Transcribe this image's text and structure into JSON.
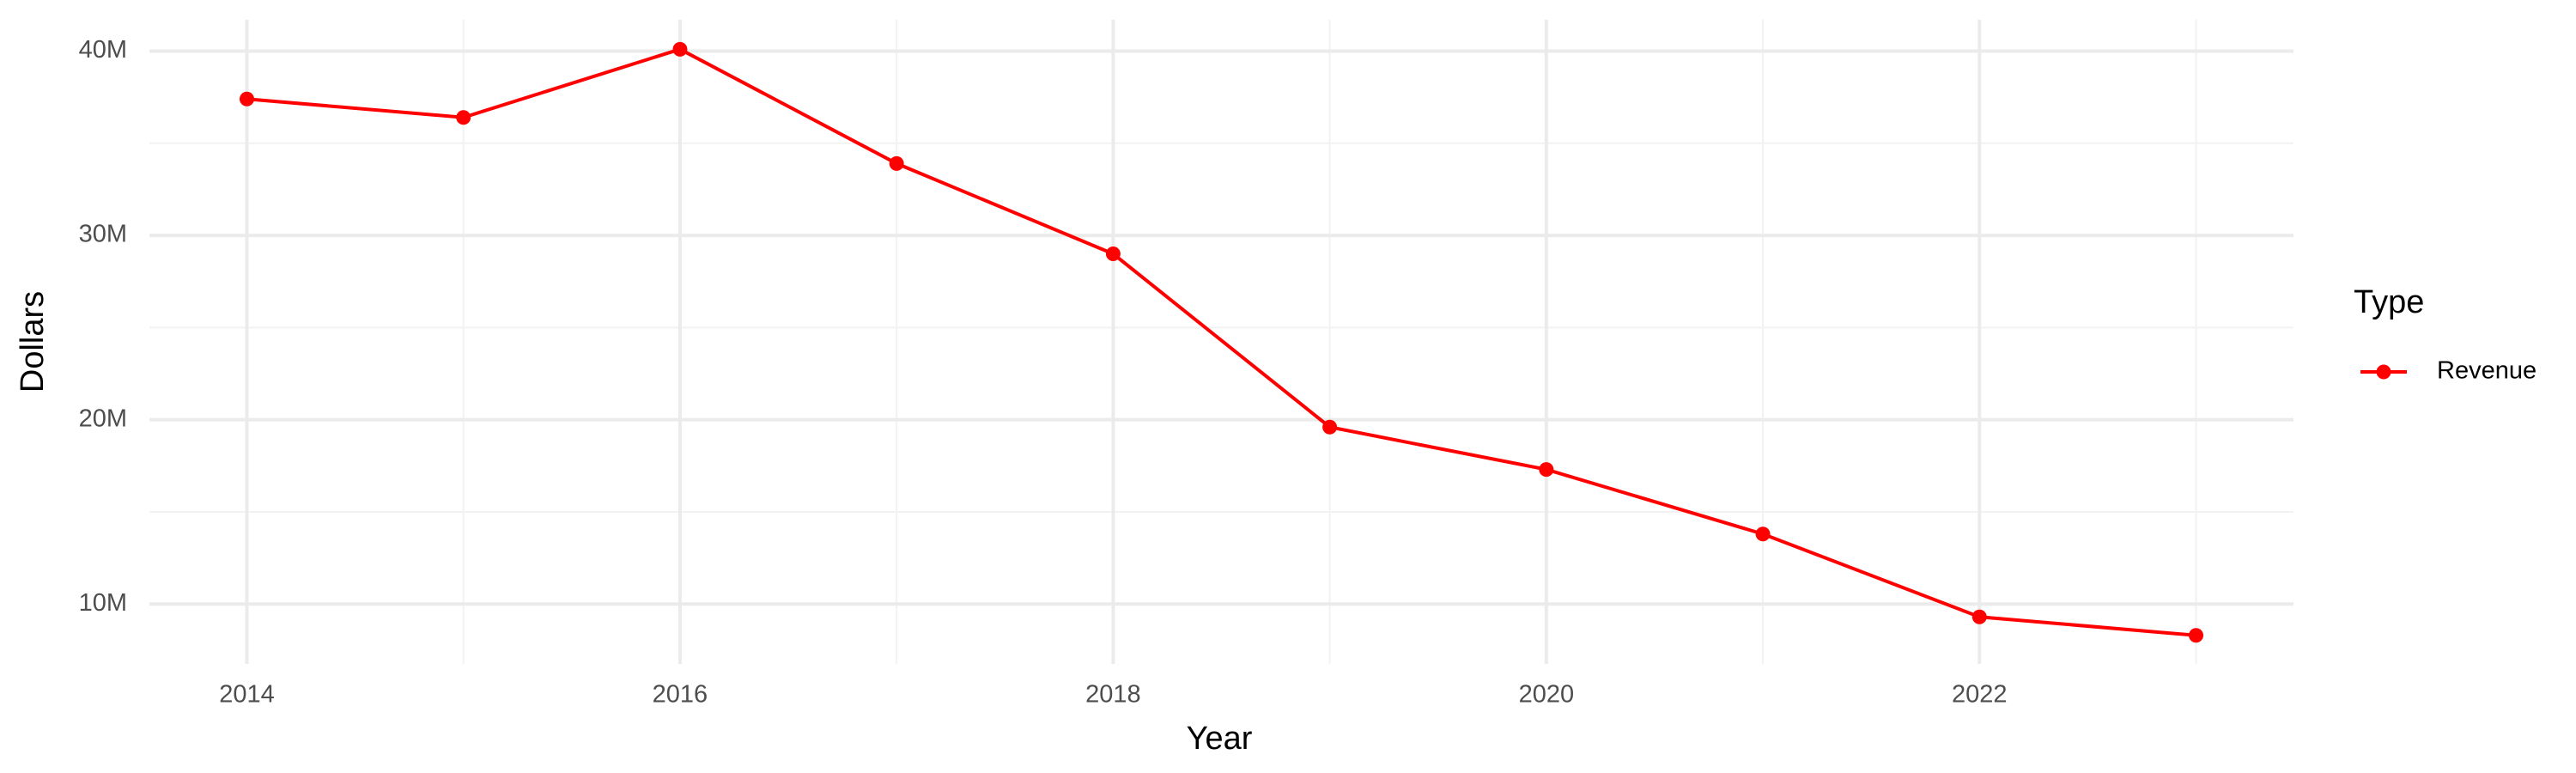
{
  "chart_data": {
    "type": "line",
    "x_label": "Year",
    "y_label": "Dollars",
    "x": [
      2014,
      2015,
      2016,
      2017,
      2018,
      2019,
      2020,
      2021,
      2022,
      2023
    ],
    "series": [
      {
        "name": "Revenue",
        "color": "#ff0000",
        "values": [
          37400000,
          36400000,
          40100000,
          33900000,
          29000000,
          19600000,
          17300000,
          13800000,
          9300000,
          8300000
        ]
      }
    ],
    "xlim": [
      2013.55,
      2023.45
    ],
    "ylim": [
      6750000,
      41700000
    ],
    "xticks": [
      2014,
      2016,
      2018,
      2020,
      2022
    ],
    "x_minor_ticks": [
      2015,
      2017,
      2019,
      2021,
      2023
    ],
    "yticks": [
      {
        "value": 10000000,
        "label": "10M"
      },
      {
        "value": 20000000,
        "label": "20M"
      },
      {
        "value": 30000000,
        "label": "30M"
      },
      {
        "value": 40000000,
        "label": "40M"
      }
    ],
    "y_minor_ticks": [
      15000000,
      25000000,
      35000000
    ],
    "grid": true,
    "legend_title": "Type",
    "legend_position": "right"
  }
}
